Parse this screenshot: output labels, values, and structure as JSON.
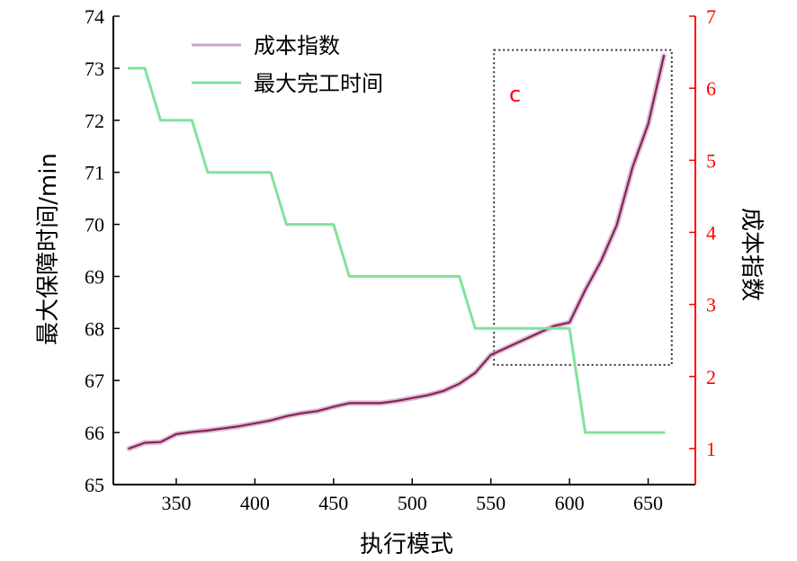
{
  "chart_data": {
    "type": "line",
    "xlabel": "执行模式",
    "ylabel_left": "最大保障时间/min",
    "ylabel_right": "成本指数",
    "xlim": [
      310,
      680
    ],
    "xticks": [
      350,
      400,
      450,
      500,
      550,
      600,
      650
    ],
    "ylim_left": [
      65,
      74
    ],
    "yticks_left": [
      65,
      66,
      67,
      68,
      69,
      70,
      71,
      72,
      73,
      74
    ],
    "ylim_right": [
      0.5,
      7
    ],
    "yticks_right": [
      1,
      2,
      3,
      4,
      5,
      6,
      7
    ],
    "legend_position": "top-left",
    "annotation": "c",
    "highlight_box": {
      "x_range": [
        552,
        665
      ],
      "y_left_range": [
        67.3,
        73.35
      ]
    },
    "colors": {
      "cost": "#8a2252",
      "cost_glow": "#c9a3c9",
      "time": "#7fe39a",
      "right_axis": "#ff0000",
      "box": "#333333"
    },
    "series": [
      {
        "name": "成本指数",
        "axis": "right",
        "x": [
          320,
          330,
          340,
          350,
          360,
          370,
          380,
          390,
          400,
          410,
          420,
          430,
          440,
          450,
          460,
          470,
          480,
          490,
          500,
          510,
          520,
          530,
          540,
          550,
          560,
          570,
          580,
          590,
          600,
          610,
          620,
          630,
          640,
          650,
          660
        ],
        "y": [
          1.0,
          1.08,
          1.09,
          1.2,
          1.23,
          1.25,
          1.28,
          1.31,
          1.35,
          1.39,
          1.45,
          1.49,
          1.52,
          1.58,
          1.63,
          1.63,
          1.63,
          1.66,
          1.7,
          1.74,
          1.8,
          1.9,
          2.05,
          2.3,
          2.4,
          2.5,
          2.6,
          2.7,
          2.75,
          3.2,
          3.6,
          4.1,
          4.9,
          5.5,
          6.45
        ]
      },
      {
        "name": "最大完工时间",
        "axis": "left",
        "x": [
          320,
          330,
          340,
          360,
          370,
          410,
          420,
          450,
          460,
          530,
          540,
          600,
          610,
          660
        ],
        "y": [
          73,
          73,
          72,
          72,
          71,
          71,
          70,
          70,
          69,
          69,
          68,
          68,
          66,
          66
        ]
      }
    ]
  }
}
